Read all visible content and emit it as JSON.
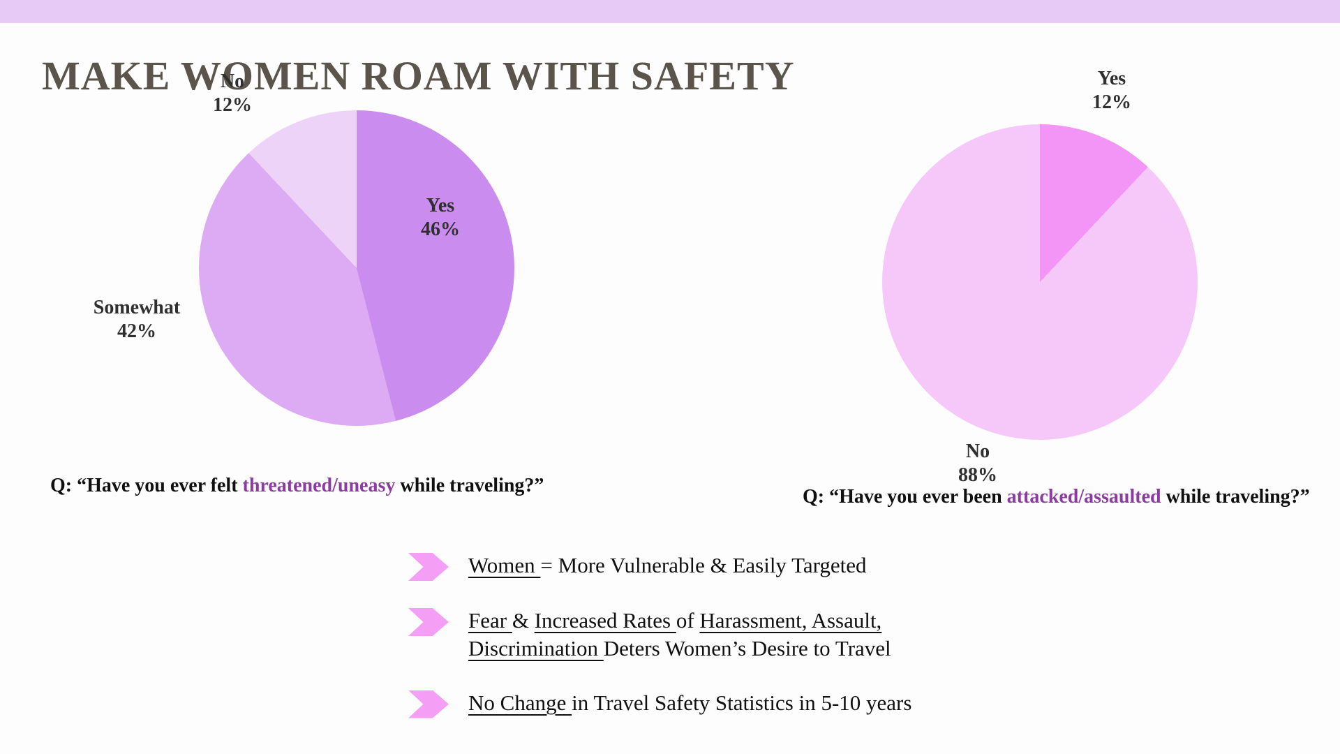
{
  "title": "MAKE WOMEN ROAM WITH SAFETY",
  "theme": {
    "top_bar_color": "#e8caf6",
    "background": "#fdfdfe",
    "title_color": "#5b544b",
    "text_color": "#101010",
    "label_color": "#2f2f2f",
    "highlight_color": "#8c3ba0",
    "bullet_arrow_color": "#f59ef6"
  },
  "chart_data": [
    {
      "type": "pie",
      "name": "threatened-uneasy-poll",
      "start_angle_deg": 0,
      "direction": "clockwise",
      "categories": [
        "Yes",
        "Somewhat",
        "No"
      ],
      "values": [
        46,
        42,
        12
      ],
      "slices": [
        {
          "label": "Yes",
          "value": 46,
          "color": "#cb8cef"
        },
        {
          "label": "Somewhat",
          "value": 42,
          "color": "#dcabf4"
        },
        {
          "label": "No",
          "value": 12,
          "color": "#eed3f8"
        }
      ],
      "labels": [
        {
          "name": "No",
          "pct": "12%"
        },
        {
          "name": "Yes",
          "pct": "46%"
        },
        {
          "name": "Somewhat",
          "pct": "42%"
        }
      ],
      "question_segments": [
        {
          "text": "Q: “Have you ever felt "
        },
        {
          "text": "threatened/uneasy",
          "highlight": true
        },
        {
          "text": " while traveling?”"
        }
      ]
    },
    {
      "type": "pie",
      "name": "attacked-assaulted-poll",
      "start_angle_deg": 0,
      "direction": "clockwise",
      "categories": [
        "Yes",
        "No"
      ],
      "values": [
        12,
        88
      ],
      "slices": [
        {
          "label": "Yes",
          "value": 12,
          "color": "#f295f6"
        },
        {
          "label": "No",
          "value": 88,
          "color": "#f6c8fa"
        }
      ],
      "labels": [
        {
          "name": "Yes",
          "pct": "12%"
        },
        {
          "name": "No",
          "pct": "88%"
        }
      ],
      "question_segments": [
        {
          "text": "Q: “Have you ever been "
        },
        {
          "text": "attacked/assaulted",
          "highlight": true
        },
        {
          "text": " while traveling?”"
        }
      ]
    }
  ],
  "bullets": [
    {
      "segments": [
        {
          "text": "Women ",
          "u": true
        },
        {
          "text": "= More Vulnerable & Easily Targeted"
        }
      ]
    },
    {
      "segments": [
        {
          "text": "Fear ",
          "u": true
        },
        {
          "text": "& "
        },
        {
          "text": "Increased Rates ",
          "u": true
        },
        {
          "text": "of "
        },
        {
          "text": "Harassment, Assault, ",
          "u": true
        },
        {
          "br": true
        },
        {
          "text": "Discrimination ",
          "u": true
        },
        {
          "text": "Deters Women’s Desire to Travel"
        }
      ]
    },
    {
      "segments": [
        {
          "text": "No Change ",
          "u": true
        },
        {
          "text": "in Travel Safety Statistics in 5-10 years"
        }
      ]
    }
  ]
}
